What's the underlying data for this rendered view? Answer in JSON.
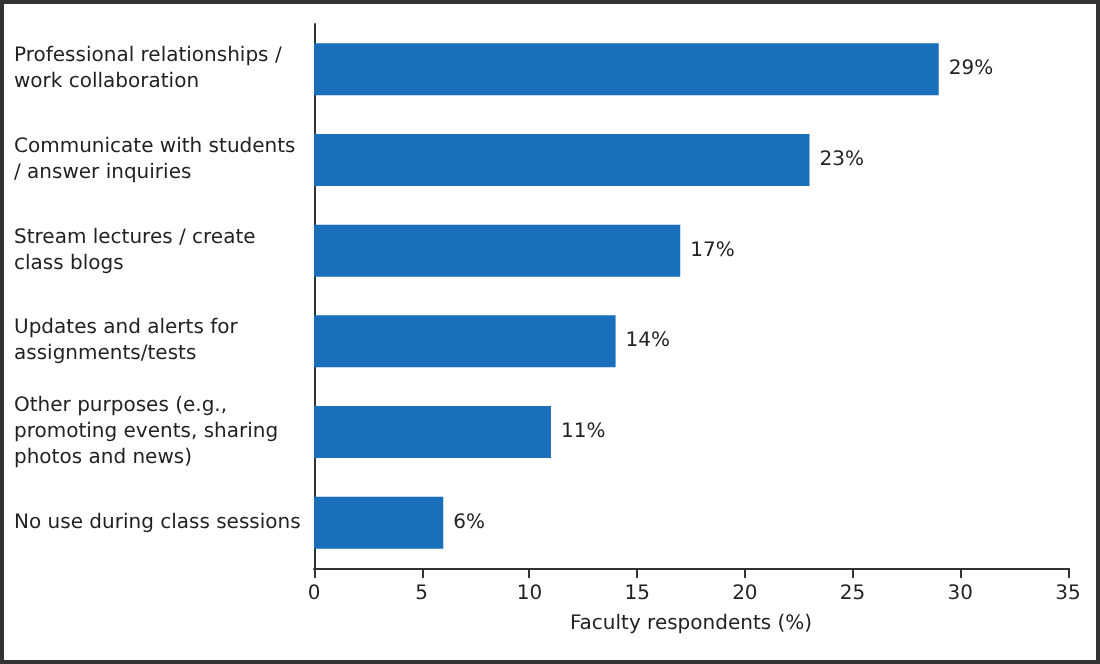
{
  "chart_data": {
    "type": "bar",
    "orientation": "horizontal",
    "xlabel": "Faculty respondents (%)",
    "categories": [
      "Professional relationships / work collaboration",
      "Communicate with students / answer inquiries",
      "Stream lectures / create class blogs",
      "Updates and alerts for assignments/tests",
      "Other purposes (e.g., promoting events, sharing photos and news)",
      "No use during class sessions"
    ],
    "values": [
      29,
      23,
      17,
      14,
      11,
      6
    ],
    "value_labels": [
      "29%",
      "23%",
      "17%",
      "14%",
      "11%",
      "6%"
    ],
    "color": "#1a6fba",
    "xlim": [
      0,
      35
    ],
    "xticks": [
      0,
      5,
      10,
      15,
      20,
      25,
      30,
      35
    ],
    "grid": false
  }
}
